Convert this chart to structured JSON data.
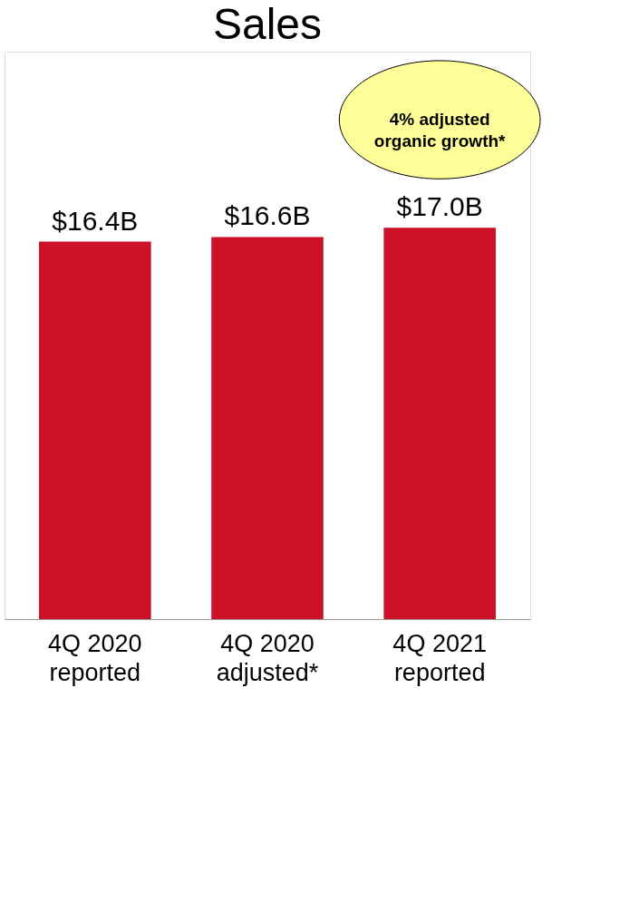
{
  "chart_data": {
    "type": "bar",
    "title": "Sales",
    "categories": [
      "4Q 2020\nreported",
      "4Q 2020\nadjusted*",
      "4Q 2021\nreported"
    ],
    "values": [
      16.4,
      16.6,
      17.0
    ],
    "value_labels": [
      "$16.4B",
      "$16.6B",
      "$17.0B"
    ],
    "color": "#cc1229",
    "annotations": [
      "4% adjusted\norganic growth*"
    ]
  }
}
